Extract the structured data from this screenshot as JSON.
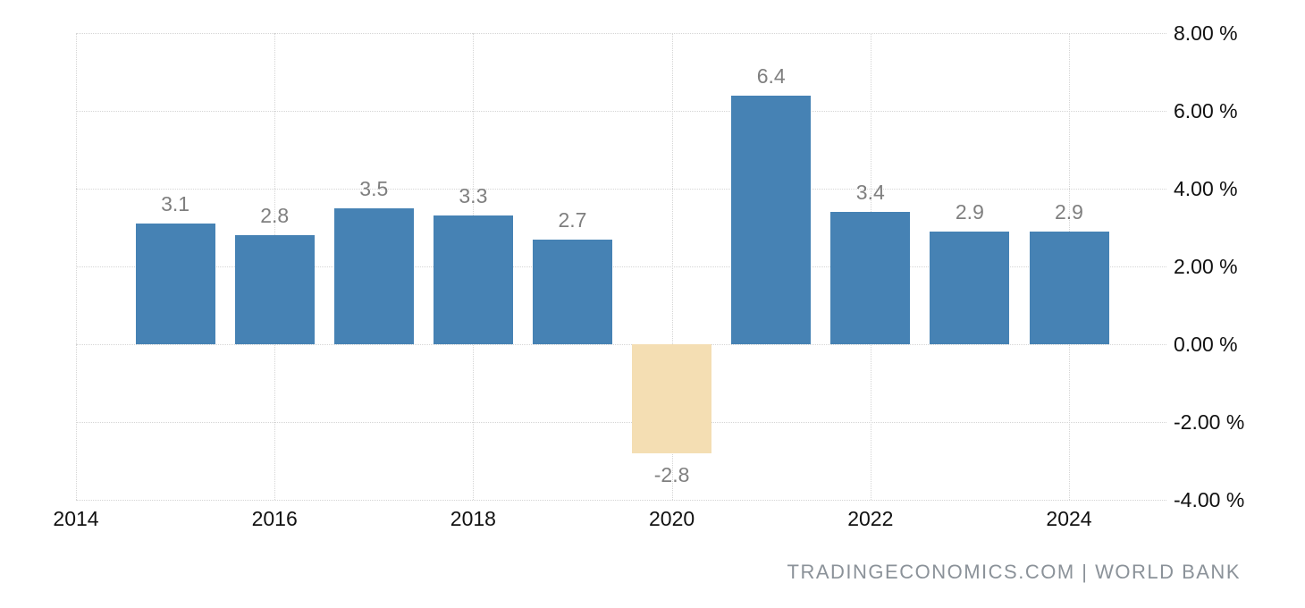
{
  "chart_data": {
    "type": "bar",
    "x": [
      2015,
      2016,
      2017,
      2018,
      2019,
      2020,
      2021,
      2022,
      2023,
      2024
    ],
    "values": [
      3.1,
      2.8,
      3.5,
      3.3,
      2.7,
      -2.8,
      6.4,
      3.4,
      2.9,
      2.9
    ],
    "bar_labels": [
      "3.1",
      "2.8",
      "3.5",
      "3.3",
      "2.7",
      "-2.8",
      "6.4",
      "3.4",
      "2.9",
      "2.9"
    ],
    "x_tick_years": [
      2014,
      2016,
      2018,
      2020,
      2022,
      2024
    ],
    "x_tick_labels": [
      "2014",
      "2016",
      "2018",
      "2020",
      "2022",
      "2024"
    ],
    "y_ticks": [
      8,
      6,
      4,
      2,
      0,
      -2,
      -4
    ],
    "y_tick_labels": [
      "8.00 %",
      "6.00 %",
      "4.00 %",
      "2.00 %",
      "0.00 %",
      "-2.00 %",
      "-4.00 %"
    ],
    "ylim": [
      -4,
      8
    ],
    "xlim": [
      2014,
      2025
    ],
    "title": "",
    "xlabel": "",
    "ylabel": "",
    "legend": "none",
    "grid": "dotted, horizontal every 2%, vertical every 2 years",
    "y_axis_side": "right",
    "colors": {
      "positive_bar": "#4682b4",
      "negative_bar": "#f4deb3",
      "bar_value_label": "#7f7f7f",
      "axis_text": "#111111",
      "gridline": "#d5d5d5",
      "background": "#ffffff",
      "attribution_text": "#8b9299"
    }
  },
  "attribution": {
    "text": "TRADINGECONOMICS.COM | WORLD BANK"
  }
}
